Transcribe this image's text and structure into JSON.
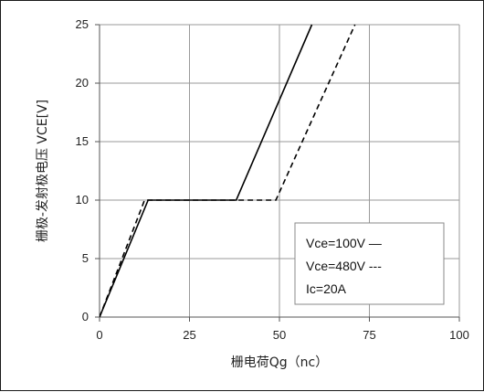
{
  "chart_data": {
    "type": "line",
    "xlabel": "栅电荷Qg（nc）",
    "ylabel": "栅极-发射极电压 VCE[V]",
    "xlim": [
      0,
      100
    ],
    "ylim": [
      0,
      25
    ],
    "x_ticks": [
      "0",
      "25",
      "50",
      "75",
      "100"
    ],
    "y_ticks": [
      "0",
      "5",
      "10",
      "15",
      "20",
      "25"
    ],
    "grid": true,
    "legend_position": "bottom-right",
    "legend": {
      "entries": [
        "Vce=100V —",
        "Vce=480V ---",
        "Ic=20A"
      ]
    },
    "series": [
      {
        "style": "solid",
        "points": [
          [
            0,
            0
          ],
          [
            13.5,
            10
          ],
          [
            38,
            10
          ],
          [
            59,
            25
          ]
        ]
      },
      {
        "style": "dashed",
        "points": [
          [
            0,
            0
          ],
          [
            12.5,
            10
          ],
          [
            49,
            10
          ],
          [
            71,
            25
          ]
        ]
      }
    ]
  }
}
